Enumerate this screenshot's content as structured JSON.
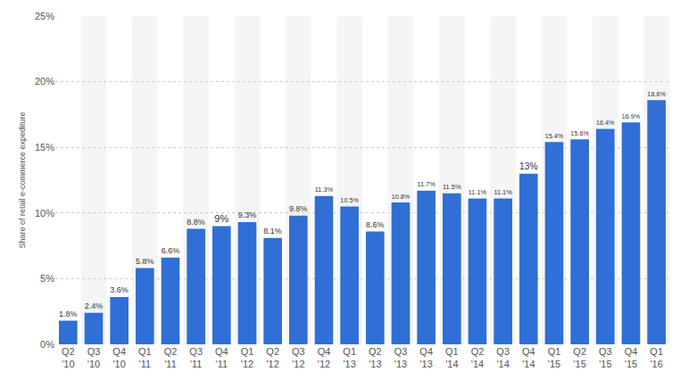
{
  "chart_data": {
    "type": "bar",
    "y_label": "Share of retail e-commerce expediture",
    "categories": [
      "Q2 '10",
      "Q3 '10",
      "Q4 '10",
      "Q1 '11",
      "Q2 '11",
      "Q3 '11",
      "Q4 '11",
      "Q1 '12",
      "Q2 '12",
      "Q3 '12",
      "Q4 '12",
      "Q1 '13",
      "Q2 '13",
      "Q3 '13",
      "Q4 '13",
      "Q1 '14",
      "Q2 '14",
      "Q3 '14",
      "Q4 '14",
      "Q1 '15",
      "Q2 '15",
      "Q3 '15",
      "Q4 '15",
      "Q1 '16"
    ],
    "values": [
      1.8,
      2.4,
      3.6,
      5.8,
      6.6,
      8.8,
      9,
      9.3,
      8.1,
      9.8,
      11.3,
      10.5,
      8.6,
      10.8,
      11.7,
      11.5,
      11.1,
      11.1,
      13,
      15.4,
      15.6,
      16.4,
      16.9,
      18.6
    ],
    "value_labels": [
      "1.8%",
      "2.4%",
      "3.6%",
      "5.8%",
      "6.6%",
      "8.8%",
      "9%",
      "9.3%",
      "8.1%",
      "9.8%",
      "11.3%",
      "10.5%",
      "8.6%",
      "10.8%",
      "11.7%",
      "11.5%",
      "11.1%",
      "11.1%",
      "13%",
      "15.4%",
      "15.6%",
      "16.4%",
      "16.9%",
      "18.6%"
    ],
    "color": "#2f6fd6",
    "ylim": [
      0,
      25
    ],
    "yticks": [
      {
        "value": 0,
        "label": "0%"
      },
      {
        "value": 5,
        "label": "5%"
      },
      {
        "value": 10,
        "label": "10%"
      },
      {
        "value": 15,
        "label": "15%"
      },
      {
        "value": 20,
        "label": "20%"
      },
      {
        "value": 25,
        "label": "25%"
      }
    ],
    "grid": true,
    "data_labels": true
  }
}
